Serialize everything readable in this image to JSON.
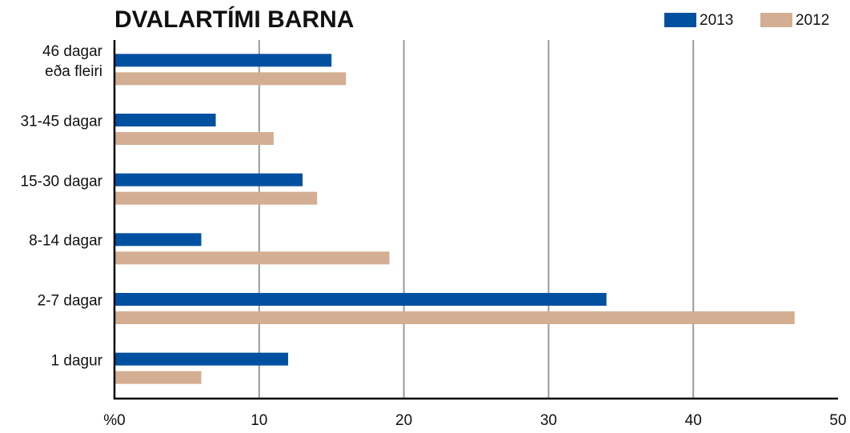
{
  "chart_data": {
    "type": "barh",
    "title": "DVALARTÍMI BARNA",
    "categories": [
      "46 dagar\neða fleiri",
      "31-45 dagar",
      "15-30 dagar",
      "8-14 dagar",
      "2-7 dagar",
      "1 dagur"
    ],
    "series": [
      {
        "name": "2013",
        "color": "#0050a0",
        "values": [
          15,
          7,
          13,
          6,
          34,
          12
        ]
      },
      {
        "name": "2012",
        "color": "#d4ae93",
        "values": [
          16,
          11,
          14,
          19,
          47,
          6
        ]
      }
    ],
    "xlim": [
      0,
      50
    ],
    "xticks": [
      {
        "value": 0,
        "label": "%0"
      },
      10,
      20,
      30,
      40,
      50
    ],
    "grid": true,
    "legend": "top-right"
  }
}
